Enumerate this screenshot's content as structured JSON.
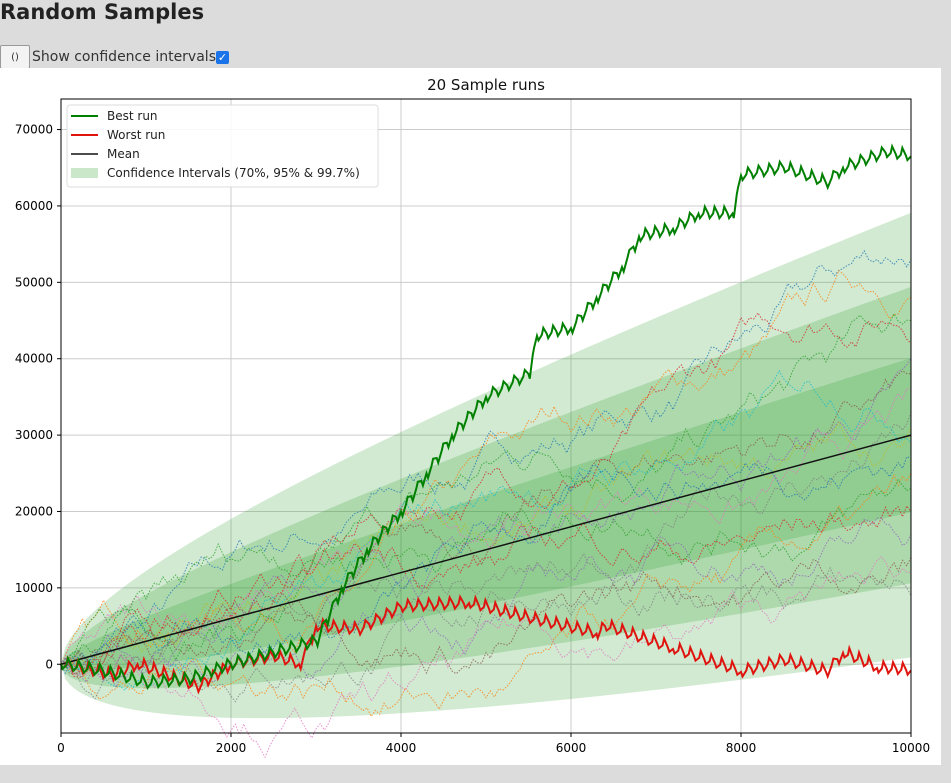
{
  "page_title": "Random Samples",
  "controls": {
    "refresh_icon": "refresh-icon",
    "checkbox_label": "Show confidence intervals",
    "checkbox_checked": true
  },
  "chart_data": {
    "type": "line",
    "title": "20 Sample runs",
    "xlim": [
      0,
      10000
    ],
    "ylim": [
      -9000,
      74000
    ],
    "xticks": [
      0,
      2000,
      4000,
      6000,
      8000,
      10000
    ],
    "yticks": [
      0,
      10000,
      20000,
      30000,
      40000,
      50000,
      60000,
      70000
    ],
    "grid": true,
    "legend_placement": "top-left",
    "legend": [
      "Best run",
      "Worst run",
      "Mean",
      "Confidence Intervals (70%, 95% & 99.7%)"
    ],
    "mean_slope": 3,
    "sd_coefficient": 97,
    "ci_multipliers": [
      1.04,
      2,
      3
    ],
    "colors": {
      "best": "#008000",
      "worst": "#e0140f",
      "mean": "#111111",
      "ci": "#2ca02c"
    },
    "best_run": [
      [
        0,
        0
      ],
      [
        500,
        -1000
      ],
      [
        1000,
        -2500
      ],
      [
        1500,
        -2000
      ],
      [
        2000,
        0
      ],
      [
        2500,
        1500
      ],
      [
        3000,
        3000
      ],
      [
        3300,
        10000
      ],
      [
        3600,
        15000
      ],
      [
        4000,
        20000
      ],
      [
        4300,
        25000
      ],
      [
        4600,
        30000
      ],
      [
        5000,
        35000
      ],
      [
        5500,
        38000
      ],
      [
        5600,
        43000
      ],
      [
        6000,
        44000
      ],
      [
        6300,
        48000
      ],
      [
        6600,
        52000
      ],
      [
        6800,
        56000
      ],
      [
        7200,
        57000
      ],
      [
        7500,
        59000
      ],
      [
        7900,
        59000
      ],
      [
        8000,
        64000
      ],
      [
        8500,
        65000
      ],
      [
        9000,
        63000
      ],
      [
        9200,
        65000
      ],
      [
        9700,
        67000
      ],
      [
        10000,
        66500
      ]
    ],
    "worst_run": [
      [
        0,
        0
      ],
      [
        600,
        -1500
      ],
      [
        900,
        0
      ],
      [
        1600,
        -3000
      ],
      [
        2000,
        0
      ],
      [
        2500,
        1000
      ],
      [
        2800,
        0
      ],
      [
        3000,
        5000
      ],
      [
        3500,
        4500
      ],
      [
        4000,
        7500
      ],
      [
        4800,
        8000
      ],
      [
        5500,
        6000
      ],
      [
        6300,
        4000
      ],
      [
        6400,
        5000
      ],
      [
        7200,
        2000
      ],
      [
        8000,
        -1000
      ],
      [
        8500,
        500
      ],
      [
        9000,
        -1000
      ],
      [
        9200,
        1500
      ],
      [
        9600,
        -500
      ],
      [
        10000,
        -800
      ]
    ],
    "other_run_finals": [
      53000,
      48000,
      45000,
      42000,
      40000,
      38000,
      36000,
      33000,
      31000,
      29000,
      27000,
      25000,
      23000,
      20000,
      17000,
      14000,
      12000,
      9000
    ]
  }
}
